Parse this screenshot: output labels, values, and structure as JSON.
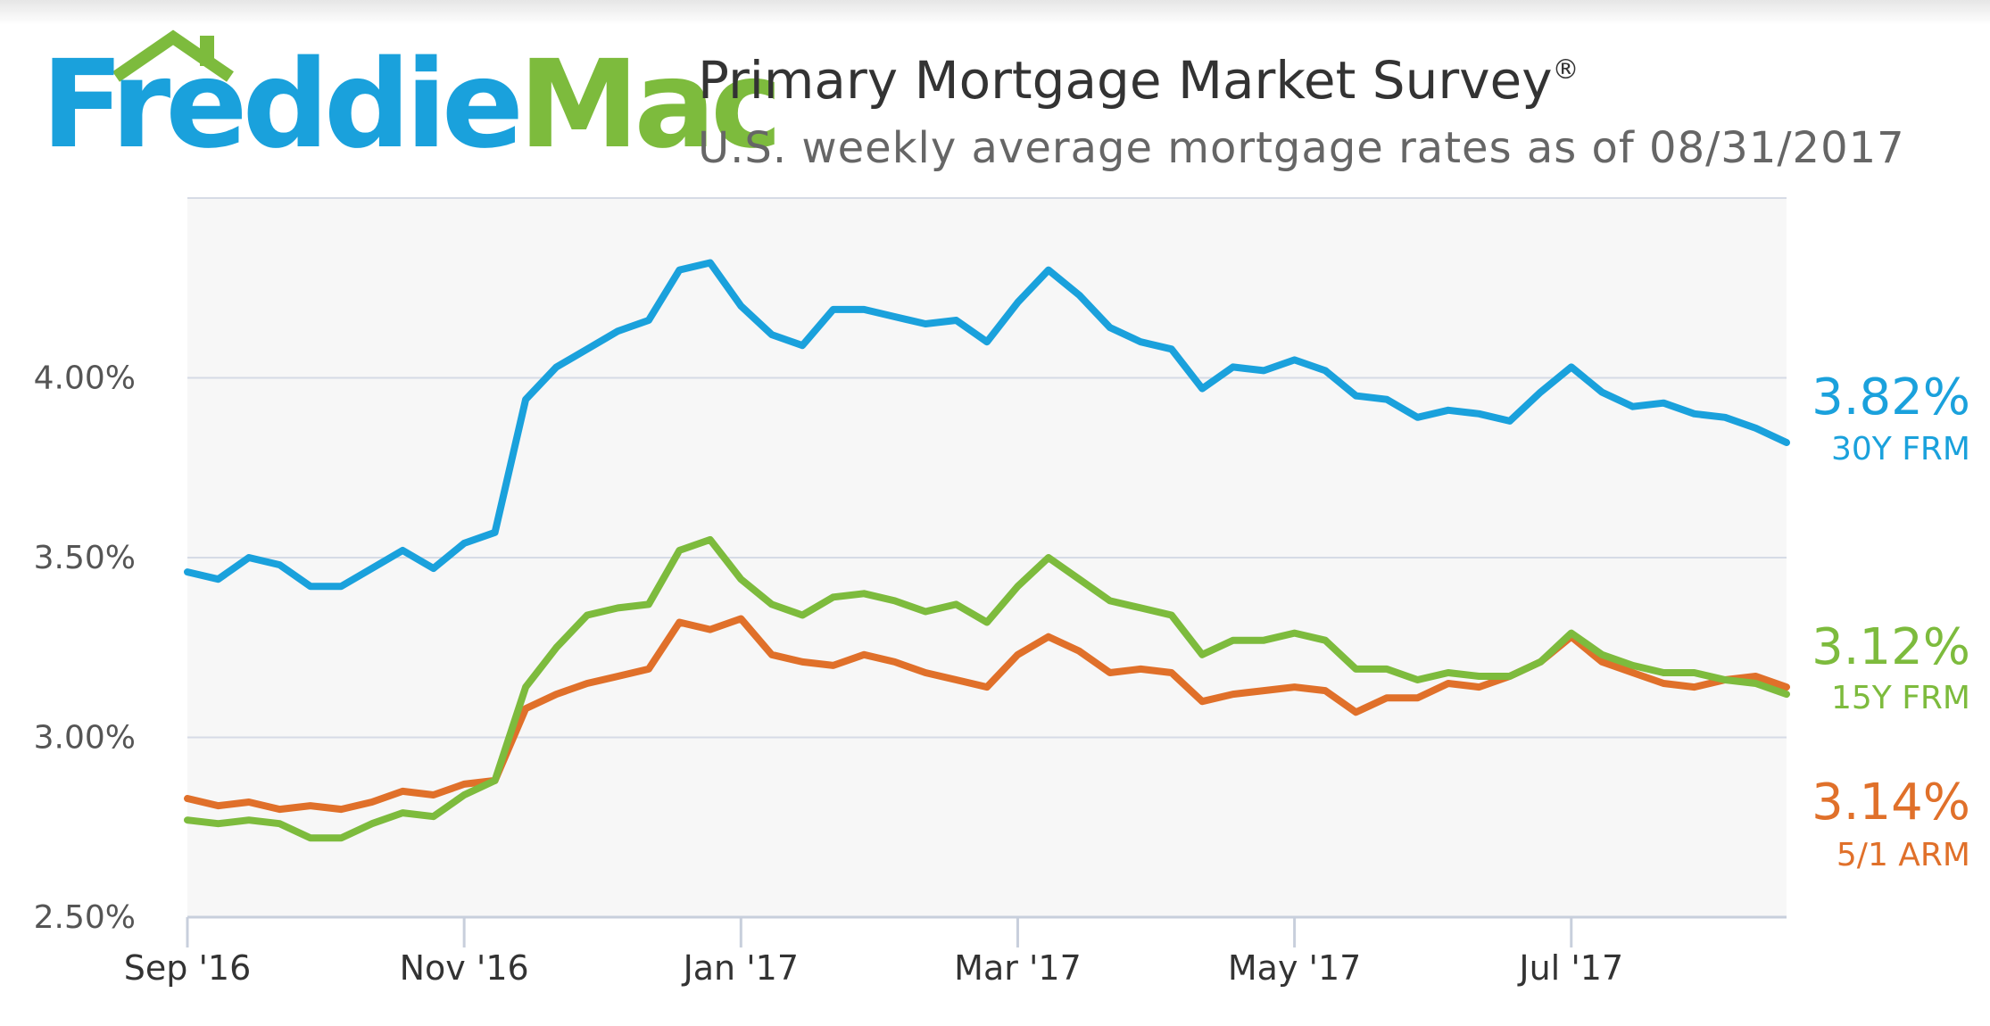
{
  "logo": {
    "part1": "Freddie",
    "part2": "Mac"
  },
  "header": {
    "title": "Primary Mortgage Market Survey",
    "title_mark": "®",
    "subtitle": "U.S. weekly average mortgage rates as of 08/31/2017"
  },
  "colors": {
    "frm30": "#1aa1dc",
    "frm15": "#7dbb3d",
    "arm51": "#e0702a",
    "grid": "#d6dbe6",
    "plot_bg": "#f7f7f7"
  },
  "chart_data": {
    "type": "line",
    "title": "Primary Mortgage Market Survey",
    "subtitle": "U.S. weekly average mortgage rates as of 08/31/2017",
    "x_ticks": [
      "Sep '16",
      "Nov '16",
      "Jan '17",
      "Mar '17",
      "May '17",
      "Jul '17"
    ],
    "x_tick_weeks": [
      0,
      9,
      18,
      27,
      36,
      45
    ],
    "y_ticks": [
      "2.50%",
      "3.00%",
      "3.50%",
      "4.00%"
    ],
    "y_tick_values": [
      2.5,
      3.0,
      3.5,
      4.0
    ],
    "ylim": [
      2.5,
      4.5
    ],
    "weeks": 53,
    "series": [
      {
        "name": "30Y FRM",
        "end_label": "3.82%",
        "values": [
          3.46,
          3.44,
          3.5,
          3.48,
          3.42,
          3.42,
          3.47,
          3.52,
          3.47,
          3.54,
          3.57,
          3.94,
          4.03,
          4.08,
          4.13,
          4.16,
          4.3,
          4.32,
          4.2,
          4.12,
          4.09,
          4.19,
          4.19,
          4.17,
          4.15,
          4.16,
          4.1,
          4.21,
          4.3,
          4.23,
          4.14,
          4.1,
          4.08,
          3.97,
          4.03,
          4.02,
          4.05,
          4.02,
          3.95,
          3.94,
          3.89,
          3.91,
          3.9,
          3.88,
          3.96,
          4.03,
          3.96,
          3.92,
          3.93,
          3.9,
          3.89,
          3.86,
          3.82
        ]
      },
      {
        "name": "15Y FRM",
        "end_label": "3.12%",
        "values": [
          2.77,
          2.76,
          2.77,
          2.76,
          2.72,
          2.72,
          2.76,
          2.79,
          2.78,
          2.84,
          2.88,
          3.14,
          3.25,
          3.34,
          3.36,
          3.37,
          3.52,
          3.55,
          3.44,
          3.37,
          3.34,
          3.39,
          3.4,
          3.38,
          3.35,
          3.37,
          3.32,
          3.42,
          3.5,
          3.44,
          3.38,
          3.36,
          3.34,
          3.23,
          3.27,
          3.27,
          3.29,
          3.27,
          3.19,
          3.19,
          3.16,
          3.18,
          3.17,
          3.17,
          3.21,
          3.29,
          3.23,
          3.2,
          3.18,
          3.18,
          3.16,
          3.15,
          3.12
        ]
      },
      {
        "name": "5/1 ARM",
        "end_label": "3.14%",
        "values": [
          2.83,
          2.81,
          2.82,
          2.8,
          2.81,
          2.8,
          2.82,
          2.85,
          2.84,
          2.87,
          2.88,
          3.08,
          3.12,
          3.15,
          3.17,
          3.19,
          3.32,
          3.3,
          3.33,
          3.23,
          3.21,
          3.2,
          3.23,
          3.21,
          3.18,
          3.16,
          3.14,
          3.23,
          3.28,
          3.24,
          3.18,
          3.19,
          3.18,
          3.1,
          3.12,
          3.13,
          3.14,
          3.13,
          3.07,
          3.11,
          3.11,
          3.15,
          3.14,
          3.17,
          3.21,
          3.28,
          3.21,
          3.18,
          3.15,
          3.14,
          3.16,
          3.17,
          3.14
        ]
      }
    ]
  }
}
